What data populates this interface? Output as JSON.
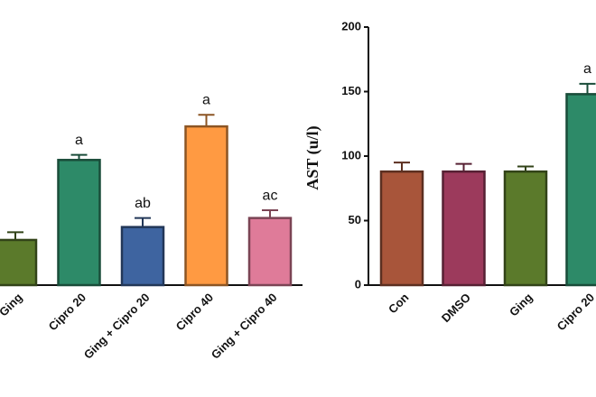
{
  "chart_data": [
    {
      "type": "bar",
      "categories": [
        "Ging",
        "Cipro 20",
        "Ging + Cipro 20",
        "Cipro 40",
        "Ging + Cipro 40"
      ],
      "values": [
        35,
        97,
        45,
        123,
        52
      ],
      "errors": [
        6,
        4,
        7,
        9,
        6
      ],
      "annotations": [
        null,
        "a",
        "ab",
        "a",
        "ac"
      ],
      "colors": [
        "#5b7a2b",
        "#2d8a68",
        "#3e64a0",
        "#ff9a42",
        "#df7b99"
      ],
      "ylim": [
        0,
        200
      ]
    },
    {
      "type": "bar",
      "ylabel": "AST (u/l)",
      "categories": [
        "Con",
        "DMSO",
        "Ging",
        "Cipro 20"
      ],
      "values": [
        88,
        88,
        88,
        148
      ],
      "errors": [
        7,
        6,
        4,
        8
      ],
      "annotations": [
        null,
        null,
        null,
        "a"
      ],
      "colors": [
        "#a8553a",
        "#9c3a5c",
        "#5b7a2b",
        "#2d8a68"
      ],
      "ylim": [
        0,
        200
      ],
      "yticks": [
        0,
        50,
        100,
        150,
        200
      ]
    }
  ]
}
